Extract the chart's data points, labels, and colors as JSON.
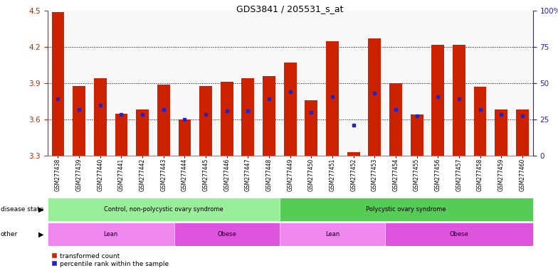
{
  "title": "GDS3841 / 205531_s_at",
  "samples": [
    "GSM277438",
    "GSM277439",
    "GSM277440",
    "GSM277441",
    "GSM277442",
    "GSM277443",
    "GSM277444",
    "GSM277445",
    "GSM277446",
    "GSM277447",
    "GSM277448",
    "GSM277449",
    "GSM277450",
    "GSM277451",
    "GSM277452",
    "GSM277453",
    "GSM277454",
    "GSM277455",
    "GSM277456",
    "GSM277457",
    "GSM277458",
    "GSM277459",
    "GSM277460"
  ],
  "red_values": [
    4.49,
    3.88,
    3.94,
    3.65,
    3.68,
    3.89,
    3.6,
    3.88,
    3.91,
    3.94,
    3.96,
    4.07,
    3.76,
    4.25,
    3.33,
    4.27,
    3.9,
    3.64,
    4.22,
    4.22,
    3.87,
    3.68,
    3.68
  ],
  "blue_values": [
    3.77,
    3.68,
    3.72,
    3.64,
    3.64,
    3.68,
    3.6,
    3.64,
    3.67,
    3.67,
    3.77,
    3.83,
    3.66,
    3.79,
    3.55,
    3.82,
    3.68,
    3.63,
    3.79,
    3.77,
    3.68,
    3.64,
    3.63
  ],
  "ylim_left": [
    3.3,
    4.5
  ],
  "ylim_right": [
    0,
    100
  ],
  "yticks_left": [
    3.3,
    3.6,
    3.9,
    4.2,
    4.5
  ],
  "yticks_right": [
    0,
    25,
    50,
    75,
    100
  ],
  "ytick_right_labels": [
    "0",
    "25",
    "50",
    "75",
    "100%"
  ],
  "grid_lines": [
    3.6,
    3.9,
    4.2
  ],
  "bar_color": "#cc2200",
  "blue_color": "#2222cc",
  "chart_bg": "#f8f8f8",
  "fig_bg": "#ffffff",
  "disease_state_groups": [
    {
      "label": "Control, non-polycystic ovary syndrome",
      "start": 0,
      "end": 11,
      "color": "#99ee99"
    },
    {
      "label": "Polycystic ovary syndrome",
      "start": 11,
      "end": 23,
      "color": "#55cc55"
    }
  ],
  "other_groups": [
    {
      "label": "Lean",
      "start": 0,
      "end": 6,
      "color": "#ee88ee"
    },
    {
      "label": "Obese",
      "start": 6,
      "end": 11,
      "color": "#dd55dd"
    },
    {
      "label": "Lean",
      "start": 11,
      "end": 16,
      "color": "#ee88ee"
    },
    {
      "label": "Obese",
      "start": 16,
      "end": 23,
      "color": "#dd55dd"
    }
  ],
  "legend_red_label": "transformed count",
  "legend_blue_label": "percentile rank within the sample",
  "disease_state_label": "disease state",
  "other_label": "other"
}
